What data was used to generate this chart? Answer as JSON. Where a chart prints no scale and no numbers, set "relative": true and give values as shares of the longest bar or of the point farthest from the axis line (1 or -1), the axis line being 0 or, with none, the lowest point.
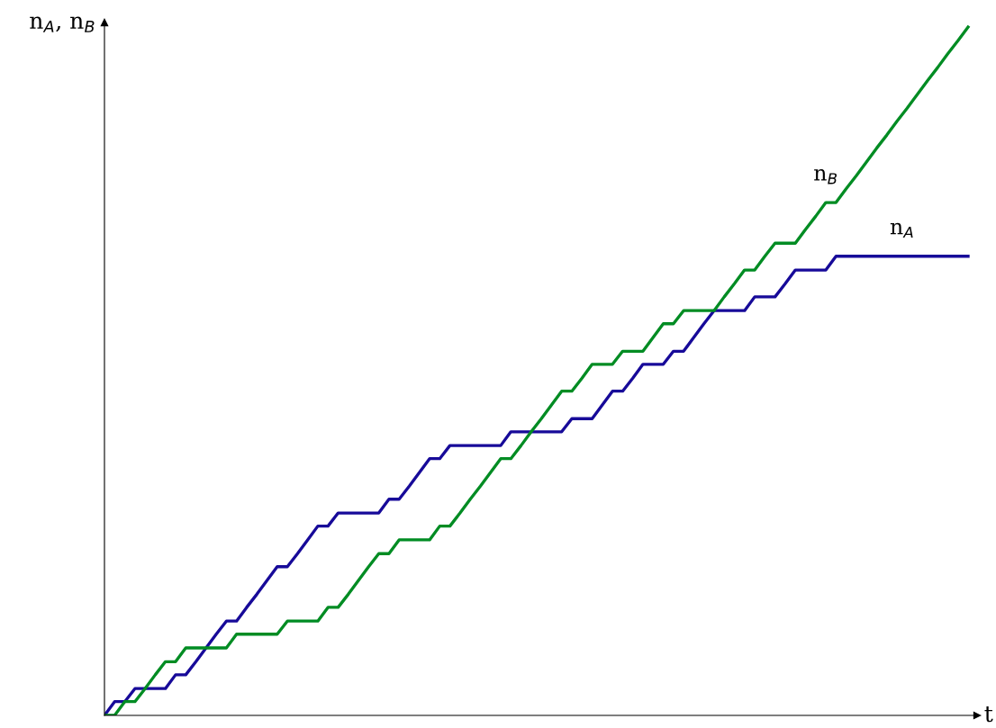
{
  "chart_data": {
    "type": "line",
    "relative": true,
    "ylabel": "n$_{A}$, n$_{B}$",
    "xlabel": "t",
    "legend": false,
    "marker": "none",
    "line_style": "solid",
    "categories": [
      null,
      null,
      null,
      null,
      null,
      null,
      null,
      null,
      null,
      null,
      null,
      null,
      null,
      null,
      null,
      null,
      null,
      null,
      null,
      null,
      null,
      null,
      null,
      null,
      null,
      null,
      null,
      null,
      null,
      null,
      null,
      null,
      null,
      null,
      null,
      null,
      null,
      null,
      null,
      null,
      null,
      null,
      null,
      null,
      null,
      null,
      null,
      null,
      null,
      null,
      null,
      null,
      null,
      null,
      null,
      null,
      null,
      null,
      null,
      null,
      null,
      null,
      null,
      null,
      null,
      null,
      null,
      null,
      null,
      null,
      null,
      null,
      null,
      null,
      null,
      null,
      null,
      null,
      null,
      null,
      null,
      null,
      null,
      null,
      null,
      null
    ],
    "series": [
      {
        "name": "n$_{A}$",
        "color": "#170a99",
        "values": [
          0,
          0.02,
          0.02,
          0.039,
          0.039,
          0.039,
          0.039,
          0.059,
          0.059,
          0.078,
          0.098,
          0.118,
          0.137,
          0.137,
          0.157,
          0.176,
          0.196,
          0.216,
          0.216,
          0.235,
          0.255,
          0.275,
          0.275,
          0.294,
          0.294,
          0.294,
          0.294,
          0.294,
          0.314,
          0.314,
          0.333,
          0.353,
          0.373,
          0.373,
          0.392,
          0.392,
          0.392,
          0.392,
          0.392,
          0.392,
          0.412,
          0.412,
          0.412,
          0.412,
          0.412,
          0.412,
          0.431,
          0.431,
          0.431,
          0.451,
          0.471,
          0.471,
          0.49,
          0.51,
          0.51,
          0.51,
          0.529,
          0.529,
          0.549,
          0.569,
          0.588,
          0.588,
          0.588,
          0.588,
          0.608,
          0.608,
          0.608,
          0.627,
          0.647,
          0.647,
          0.647,
          0.647,
          0.667,
          0.667,
          0.667,
          0.667,
          0.667,
          0.667,
          0.667,
          0.667,
          0.667,
          0.667,
          0.667,
          0.667,
          0.667,
          0.667
        ]
      },
      {
        "name": "n$_{B}$",
        "color": "#008c23",
        "values": [
          0,
          0,
          0.02,
          0.02,
          0.039,
          0.059,
          0.078,
          0.078,
          0.098,
          0.098,
          0.098,
          0.098,
          0.098,
          0.118,
          0.118,
          0.118,
          0.118,
          0.118,
          0.137,
          0.137,
          0.137,
          0.137,
          0.157,
          0.157,
          0.176,
          0.196,
          0.216,
          0.235,
          0.235,
          0.255,
          0.255,
          0.255,
          0.255,
          0.275,
          0.275,
          0.294,
          0.314,
          0.333,
          0.353,
          0.373,
          0.373,
          0.392,
          0.412,
          0.431,
          0.451,
          0.471,
          0.471,
          0.49,
          0.51,
          0.51,
          0.51,
          0.529,
          0.529,
          0.529,
          0.549,
          0.569,
          0.569,
          0.588,
          0.588,
          0.588,
          0.588,
          0.608,
          0.627,
          0.647,
          0.647,
          0.667,
          0.686,
          0.686,
          0.686,
          0.706,
          0.725,
          0.745,
          0.745,
          0.765,
          0.784,
          0.804,
          0.824,
          0.843,
          0.863,
          0.882,
          0.902,
          0.922,
          0.941,
          0.961,
          0.98,
          1
        ]
      }
    ]
  }
}
